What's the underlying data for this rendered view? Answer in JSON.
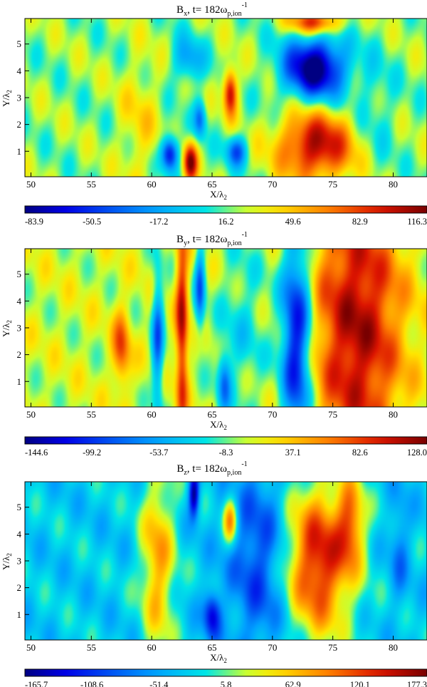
{
  "figure": {
    "panels": [
      {
        "title": {
          "field": "B",
          "sub": "x",
          "mid": ", t=  182ω",
          "sub2": "p,ion",
          "sup": "-1"
        },
        "colorbar_ticks": [
          "-83.9",
          "-50.5",
          "-17.2",
          "16.2",
          "49.6",
          "82.9",
          "116.3"
        ]
      },
      {
        "title": {
          "field": "B",
          "sub": "y",
          "mid": ", t=  182ω",
          "sub2": "p,ion",
          "sup": "-1"
        },
        "colorbar_ticks": [
          "-144.6",
          "-99.2",
          "-53.7",
          "-8.3",
          "37.1",
          "82.6",
          "128.0"
        ]
      },
      {
        "title": {
          "field": "B",
          "sub": "z",
          "mid": ", t=  182ω",
          "sub2": "p,ion",
          "sup": "-1"
        },
        "colorbar_ticks": [
          "-165.7",
          "-108.6",
          "-51.4",
          "5.8",
          "62.9",
          "120.1",
          "177.3"
        ]
      }
    ],
    "xlabel": {
      "main": "X/λ",
      "sub": "2"
    },
    "ylabel": {
      "main": "Y/λ",
      "sub": "2"
    }
  },
  "chart_data": [
    {
      "type": "heatmap",
      "quantity": "Bx",
      "xlim": [
        49.5,
        82.8
      ],
      "ylim": [
        0.05,
        5.95
      ],
      "xticks": [
        50,
        55,
        60,
        65,
        70,
        75,
        80
      ],
      "yticks": [
        1,
        2,
        3,
        4,
        5
      ],
      "zlim": [
        -83.9,
        116.3
      ],
      "colormap": "jet",
      "background": 0.52,
      "features": [
        {
          "x": 73.5,
          "y": 4.1,
          "sx": 1.8,
          "sy": 0.8,
          "amp": -0.55
        },
        {
          "x": 73.6,
          "y": 1.2,
          "sx": 2.2,
          "sy": 0.9,
          "amp": 0.42
        },
        {
          "x": 73.5,
          "y": 5.8,
          "sx": 1.5,
          "sy": 0.3,
          "amp": 0.35
        },
        {
          "x": 66.5,
          "y": 3.2,
          "sx": 0.4,
          "sy": 0.6,
          "amp": 0.42
        },
        {
          "x": 61.5,
          "y": 0.9,
          "sx": 0.5,
          "sy": 0.45,
          "amp": -0.45
        },
        {
          "x": 63.2,
          "y": 0.6,
          "sx": 0.4,
          "sy": 0.5,
          "amp": 0.45
        },
        {
          "x": 64.0,
          "y": 2.2,
          "sx": 0.35,
          "sy": 0.5,
          "amp": -0.25
        },
        {
          "x": 67.0,
          "y": 1.0,
          "sx": 0.6,
          "sy": 0.4,
          "amp": -0.3
        },
        {
          "x": 63.0,
          "y": 4.4,
          "sx": 0.9,
          "sy": 0.6,
          "amp": -0.2
        },
        {
          "x": 59.0,
          "y": 2.0,
          "sx": 1.2,
          "sy": 1.8,
          "amp": 0.1
        },
        {
          "x": 78.5,
          "y": 2.5,
          "sx": 1.2,
          "sy": 1.5,
          "amp": -0.08
        }
      ]
    },
    {
      "type": "heatmap",
      "quantity": "By",
      "xlim": [
        49.5,
        82.8
      ],
      "ylim": [
        0.05,
        5.95
      ],
      "xticks": [
        50,
        55,
        60,
        65,
        70,
        75,
        80
      ],
      "yticks": [
        1,
        2,
        3,
        4,
        5
      ],
      "zlim": [
        -144.6,
        128.0
      ],
      "colormap": "jet",
      "background": 0.56,
      "features": [
        {
          "x": 77.0,
          "y": 3.0,
          "sx": 2.6,
          "sy": 4.0,
          "amp": 0.38
        },
        {
          "x": 72.0,
          "y": 2.5,
          "sx": 0.9,
          "sy": 3.0,
          "amp": -0.48
        },
        {
          "x": 62.5,
          "y": 3.0,
          "sx": 0.35,
          "sy": 3.0,
          "amp": 0.35
        },
        {
          "x": 64.0,
          "y": 4.5,
          "sx": 0.3,
          "sy": 1.2,
          "amp": -0.3
        },
        {
          "x": 60.5,
          "y": 2.5,
          "sx": 0.35,
          "sy": 2.0,
          "amp": -0.3
        },
        {
          "x": 57.5,
          "y": 2.2,
          "sx": 0.5,
          "sy": 1.0,
          "amp": 0.25
        },
        {
          "x": 67.5,
          "y": 3.0,
          "sx": 1.5,
          "sy": 2.5,
          "amp": -0.12
        },
        {
          "x": 66.0,
          "y": 1.0,
          "sx": 0.4,
          "sy": 0.8,
          "amp": -0.25
        }
      ]
    },
    {
      "type": "heatmap",
      "quantity": "Bz",
      "xlim": [
        49.5,
        82.8
      ],
      "ylim": [
        0.05,
        5.95
      ],
      "xticks": [
        50,
        55,
        60,
        65,
        70,
        75,
        80
      ],
      "yticks": [
        1,
        2,
        3,
        4,
        5
      ],
      "zlim": [
        -165.7,
        177.3
      ],
      "colormap": "jet",
      "background": 0.4,
      "features": [
        {
          "x": 73.8,
          "y": 3.0,
          "sx": 2.0,
          "sy": 2.0,
          "amp": 0.5
        },
        {
          "x": 76.5,
          "y": 4.5,
          "sx": 0.8,
          "sy": 1.2,
          "amp": 0.3
        },
        {
          "x": 69.0,
          "y": 3.0,
          "sx": 1.8,
          "sy": 2.5,
          "amp": -0.22
        },
        {
          "x": 63.5,
          "y": 5.5,
          "sx": 0.3,
          "sy": 0.6,
          "amp": -0.4
        },
        {
          "x": 60.5,
          "y": 3.0,
          "sx": 1.0,
          "sy": 2.5,
          "amp": 0.3
        },
        {
          "x": 66.5,
          "y": 4.5,
          "sx": 0.4,
          "sy": 0.6,
          "amp": 0.35
        },
        {
          "x": 65.0,
          "y": 1.0,
          "sx": 0.5,
          "sy": 0.6,
          "amp": -0.3
        },
        {
          "x": 80.5,
          "y": 3.5,
          "sx": 0.6,
          "sy": 1.5,
          "amp": -0.12
        }
      ]
    }
  ]
}
